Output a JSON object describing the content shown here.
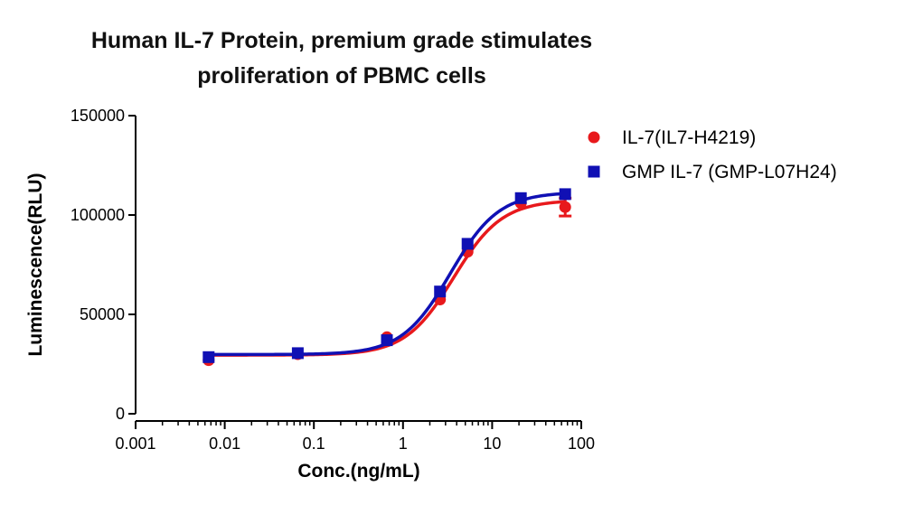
{
  "chart_data": {
    "type": "scatter",
    "title": "Human IL-7 Protein, premium grade stimulates",
    "subtitle": "proliferation of PBMC cells",
    "xlabel": "Conc.(ng/mL)",
    "ylabel": "Luminescence(RLU)",
    "x_scale": "log",
    "xlim": [
      0.001,
      100
    ],
    "ylim": [
      0,
      150000
    ],
    "x_ticks": [
      "0.001",
      "0.01",
      "0.1",
      "1",
      "10",
      "100"
    ],
    "y_ticks": [
      "0",
      "50000",
      "100000",
      "150000"
    ],
    "legend_position": "top-right",
    "grid": false,
    "series": [
      {
        "name": "IL-7(IL7-H4219)",
        "marker": "circle",
        "color": "#e8191c",
        "x": [
          0.0066,
          0.066,
          0.66,
          2.6,
          5.3,
          21,
          66
        ],
        "y": [
          27000,
          30000,
          38500,
          57500,
          81500,
          106000,
          104000
        ],
        "y_error": [
          0,
          0,
          0,
          0,
          0,
          0,
          4500
        ],
        "fit_curve": {
          "bottom": 29500,
          "top": 107500,
          "ec50": 3.7,
          "hill": 1.6
        }
      },
      {
        "name": "GMP IL-7 (GMP-L07H24)",
        "marker": "square",
        "color": "#1010b4",
        "x": [
          0.0066,
          0.066,
          0.66,
          2.6,
          5.3,
          21,
          66
        ],
        "y": [
          28500,
          30500,
          37000,
          61500,
          85500,
          108500,
          110500
        ],
        "y_error": [
          0,
          0,
          0,
          0,
          0,
          0,
          0
        ],
        "fit_curve": {
          "bottom": 29800,
          "top": 111500,
          "ec50": 3.4,
          "hill": 1.6
        }
      }
    ]
  }
}
